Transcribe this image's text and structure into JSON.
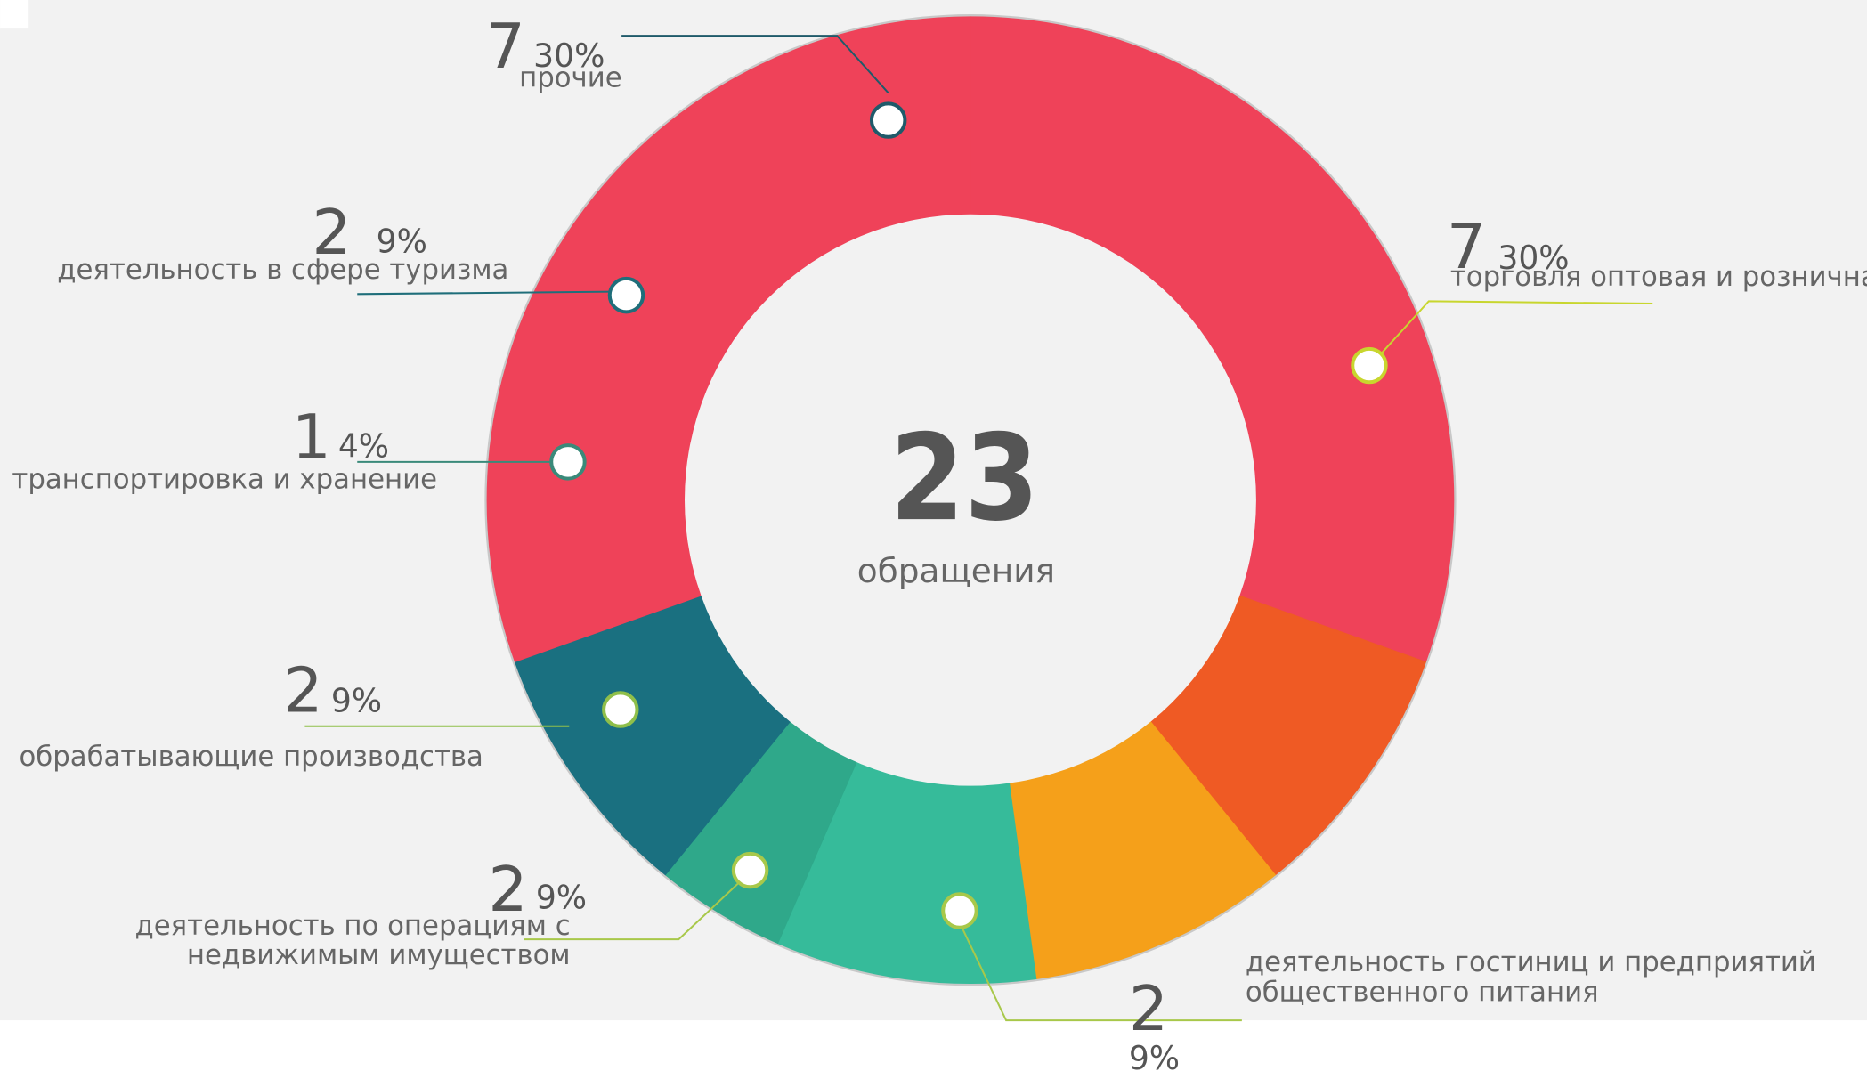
{
  "chart_data": {
    "type": "donut",
    "total": 23,
    "total_label": "обращения",
    "segments": [
      {
        "name": [
          "торговля оптовая и розничная"
        ],
        "value": 7,
        "percent_label": "30%",
        "color": "#ef4259",
        "line_color": "#c8d62e"
      },
      {
        "name": [
          "деятельность гостиниц и предприятий",
          "общественного питания"
        ],
        "value": 2,
        "percent_label": "9%",
        "color": "#ef5a24",
        "line_color": "#a8c84a"
      },
      {
        "name": [
          "деятельность по операциям с",
          "недвижимым имуществом"
        ],
        "value": 2,
        "percent_label": "9%",
        "color": "#f5a01a",
        "line_color": "#a8c84a"
      },
      {
        "name": [
          "обрабатывающие производства"
        ],
        "value": 2,
        "percent_label": "9%",
        "color": "#36bb9a",
        "line_color": "#8fbf4a"
      },
      {
        "name": [
          "транспортировка и хранение"
        ],
        "value": 1,
        "percent_label": "4%",
        "color": "#2fa88a",
        "line_color": "#3a8a7a"
      },
      {
        "name": [
          "деятельность в сфере туризма"
        ],
        "value": 2,
        "percent_label": "9%",
        "color": "#1a7080",
        "line_color": "#1f6e7a"
      },
      {
        "name": [
          "прочие"
        ],
        "value": 7,
        "percent_label": "30%",
        "color": "#ef4259",
        "line_color": "#1f5a6a"
      }
    ]
  }
}
